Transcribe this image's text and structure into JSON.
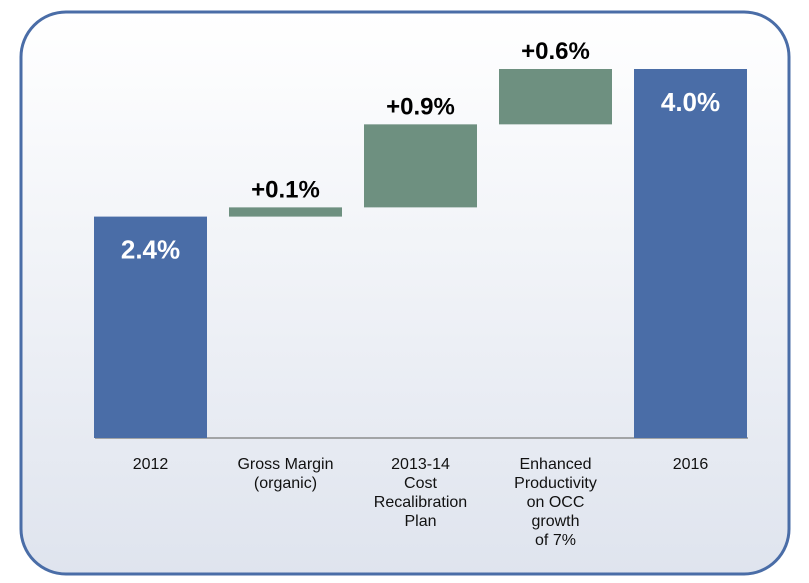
{
  "chart_data": {
    "type": "waterfall",
    "categories": [
      "2012",
      "Gross Margin\n(organic)",
      "2013-14\nCost\nRecalibration\nPlan",
      "Enhanced\nProductivity\non OCC\ngrowth\nof 7%",
      "2016"
    ],
    "values": [
      2.4,
      0.1,
      0.9,
      0.6,
      4.0
    ],
    "value_labels": [
      "2.4%",
      "+0.1%",
      "+0.9%",
      "+0.6%",
      "4.0%"
    ],
    "measure": [
      "absolute",
      "relative",
      "relative",
      "relative",
      "total"
    ],
    "total_color": "#4a6da7",
    "increase_color": "#6e9080"
  }
}
